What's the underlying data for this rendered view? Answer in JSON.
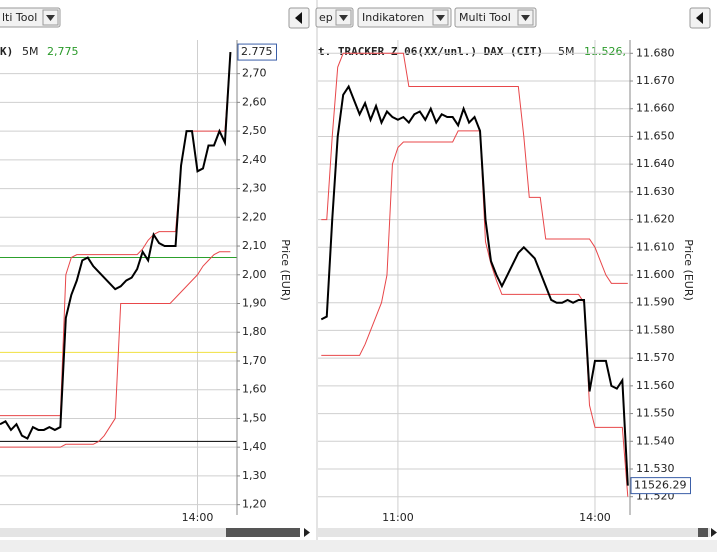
{
  "toolbars": [
    {
      "items": [
        "lti Tool"
      ]
    },
    {
      "items": [
        "ep",
        "Indikatoren",
        "Multi Tool"
      ]
    }
  ],
  "chart_data": [
    {
      "type": "line",
      "header": {
        "name": "K)",
        "interval": "5M",
        "last": "2,775"
      },
      "price_box": "2.775",
      "y_label": "Price (EUR)",
      "grid": true,
      "x": [
        660,
        665,
        670,
        675,
        680,
        685,
        690,
        695,
        700,
        705,
        710,
        715,
        720,
        725,
        730,
        735,
        740,
        745,
        750,
        755,
        760,
        765,
        770,
        775,
        780,
        785,
        790,
        795,
        800,
        805,
        810,
        815,
        820,
        825,
        830,
        835,
        840,
        845,
        850,
        855,
        860,
        865,
        870
      ],
      "xlim": [
        660,
        876
      ],
      "xticks": [
        {
          "value": 840,
          "label": "14:00"
        }
      ],
      "ylim": [
        1.164,
        2.817
      ],
      "yticks": [
        {
          "value": 1.2,
          "label": "1,20"
        },
        {
          "value": 1.3,
          "label": "1,30"
        },
        {
          "value": 1.4,
          "label": "1,40"
        },
        {
          "value": 1.5,
          "label": "1,50"
        },
        {
          "value": 1.6,
          "label": "1,60"
        },
        {
          "value": 1.7,
          "label": "1,70"
        },
        {
          "value": 1.8,
          "label": "1,80"
        },
        {
          "value": 1.9,
          "label": "1,90"
        },
        {
          "value": 2.0,
          "label": "2,00"
        },
        {
          "value": 2.1,
          "label": "2,10"
        },
        {
          "value": 2.2,
          "label": "2,20"
        },
        {
          "value": 2.3,
          "label": "2,30"
        },
        {
          "value": 2.4,
          "label": "2,40"
        },
        {
          "value": 2.5,
          "label": "2,50"
        },
        {
          "value": 2.6,
          "label": "2,60"
        },
        {
          "value": 2.7,
          "label": "2,70"
        }
      ],
      "hlines": [
        {
          "value": 2.06,
          "color": "#2ca02c"
        },
        {
          "value": 1.73,
          "color": "#f0e040"
        },
        {
          "value": 1.42,
          "color": "#000000"
        }
      ],
      "series": [
        {
          "color": "#e8474a",
          "values": [
            1.51,
            1.51,
            1.51,
            1.51,
            1.51,
            1.51,
            1.51,
            1.51,
            1.51,
            1.51,
            1.51,
            1.51,
            2.0,
            2.06,
            2.07,
            2.07,
            2.07,
            2.07,
            2.07,
            2.07,
            2.07,
            2.07,
            2.07,
            2.07,
            2.07,
            2.07,
            2.09,
            2.12,
            2.14,
            2.15,
            2.15,
            2.15,
            2.15,
            2.38,
            2.5,
            2.5,
            2.5,
            2.5,
            2.5,
            2.5,
            2.5,
            2.5,
            2.775
          ]
        },
        {
          "color": "#e8474a",
          "values": [
            1.4,
            1.4,
            1.4,
            1.4,
            1.4,
            1.4,
            1.4,
            1.4,
            1.4,
            1.4,
            1.4,
            1.4,
            1.41,
            1.41,
            1.41,
            1.41,
            1.41,
            1.41,
            1.42,
            1.44,
            1.47,
            1.5,
            1.9,
            1.9,
            1.9,
            1.9,
            1.9,
            1.9,
            1.9,
            1.9,
            1.9,
            1.9,
            1.92,
            1.94,
            1.96,
            1.98,
            2.0,
            2.03,
            2.05,
            2.07,
            2.08,
            2.08,
            2.08
          ]
        },
        {
          "color": "#000000",
          "values": [
            1.48,
            1.49,
            1.46,
            1.48,
            1.44,
            1.43,
            1.47,
            1.46,
            1.46,
            1.47,
            1.46,
            1.47,
            1.85,
            1.93,
            1.98,
            2.05,
            2.06,
            2.03,
            2.01,
            1.99,
            1.97,
            1.95,
            1.96,
            1.98,
            1.99,
            2.02,
            2.08,
            2.05,
            2.14,
            2.11,
            2.1,
            2.1,
            2.1,
            2.38,
            2.5,
            2.5,
            2.36,
            2.37,
            2.45,
            2.45,
            2.5,
            2.46,
            2.775
          ]
        }
      ]
    },
    {
      "type": "line",
      "header": {
        "name": "t. TRACKER Z 06(XX/unl.) DAX (CIT)",
        "interval": "5M",
        "last": "11.526,"
      },
      "price_box": "11526.29",
      "y_label": "Price (EUR)",
      "grid": true,
      "x": [
        590,
        595,
        600,
        605,
        610,
        615,
        620,
        625,
        630,
        635,
        640,
        645,
        650,
        655,
        660,
        665,
        670,
        675,
        680,
        685,
        690,
        695,
        700,
        705,
        710,
        715,
        720,
        725,
        730,
        735,
        740,
        745,
        750,
        755,
        760,
        765,
        770,
        775,
        780,
        785,
        790,
        795,
        800,
        805,
        810,
        815,
        820,
        825,
        830,
        835,
        840,
        845,
        850,
        855,
        860,
        865,
        870
      ],
      "xlim": [
        587,
        872
      ],
      "xticks": [
        {
          "value": 660,
          "label": "11:00"
        },
        {
          "value": 840,
          "label": "14:00"
        }
      ],
      "ylim": [
        11.5134,
        11.6848
      ],
      "yticks": [
        {
          "value": 11.52,
          "label": "11.520"
        },
        {
          "value": 11.53,
          "label": "11.530"
        },
        {
          "value": 11.54,
          "label": "11.540"
        },
        {
          "value": 11.55,
          "label": "11.550"
        },
        {
          "value": 11.56,
          "label": "11.560"
        },
        {
          "value": 11.57,
          "label": "11.570"
        },
        {
          "value": 11.58,
          "label": "11.580"
        },
        {
          "value": 11.59,
          "label": "11.590"
        },
        {
          "value": 11.6,
          "label": "11.600"
        },
        {
          "value": 11.61,
          "label": "11.610"
        },
        {
          "value": 11.62,
          "label": "11.620"
        },
        {
          "value": 11.63,
          "label": "11.630"
        },
        {
          "value": 11.64,
          "label": "11.640"
        },
        {
          "value": 11.65,
          "label": "11.650"
        },
        {
          "value": 11.66,
          "label": "11.660"
        },
        {
          "value": 11.67,
          "label": "11.670"
        },
        {
          "value": 11.68,
          "label": "11.680"
        }
      ],
      "series": [
        {
          "color": "#e8474a",
          "values": [
            11.62,
            11.62,
            11.65,
            11.675,
            11.68,
            11.68,
            11.68,
            11.68,
            11.68,
            11.68,
            11.68,
            11.68,
            11.68,
            11.68,
            11.68,
            11.68,
            11.668,
            11.668,
            11.668,
            11.668,
            11.668,
            11.668,
            11.668,
            11.668,
            11.668,
            11.668,
            11.668,
            11.668,
            11.668,
            11.668,
            11.668,
            11.668,
            11.668,
            11.668,
            11.668,
            11.668,
            11.668,
            11.65,
            11.628,
            11.628,
            11.628,
            11.613,
            11.613,
            11.613,
            11.613,
            11.613,
            11.613,
            11.613,
            11.613,
            11.613,
            11.61,
            11.605,
            11.6,
            11.597,
            11.597,
            11.597,
            11.597
          ]
        },
        {
          "color": "#e8474a",
          "values": [
            11.571,
            11.571,
            11.571,
            11.571,
            11.571,
            11.571,
            11.571,
            11.571,
            11.575,
            11.58,
            11.585,
            11.59,
            11.6,
            11.64,
            11.646,
            11.648,
            11.648,
            11.648,
            11.648,
            11.648,
            11.648,
            11.648,
            11.648,
            11.648,
            11.648,
            11.652,
            11.652,
            11.652,
            11.652,
            11.652,
            11.612,
            11.604,
            11.598,
            11.593,
            11.593,
            11.593,
            11.593,
            11.593,
            11.593,
            11.593,
            11.593,
            11.593,
            11.593,
            11.593,
            11.593,
            11.593,
            11.593,
            11.593,
            11.59,
            11.553,
            11.545,
            11.545,
            11.545,
            11.545,
            11.545,
            11.545,
            11.52
          ]
        },
        {
          "color": "#000000",
          "values": [
            11.584,
            11.585,
            11.62,
            11.65,
            11.665,
            11.668,
            11.663,
            11.658,
            11.662,
            11.656,
            11.661,
            11.655,
            11.659,
            11.657,
            11.656,
            11.657,
            11.655,
            11.658,
            11.659,
            11.656,
            11.66,
            11.655,
            11.658,
            11.657,
            11.657,
            11.654,
            11.66,
            11.655,
            11.657,
            11.652,
            11.62,
            11.605,
            11.6,
            11.596,
            11.6,
            11.604,
            11.608,
            11.61,
            11.608,
            11.606,
            11.601,
            11.596,
            11.591,
            11.59,
            11.59,
            11.591,
            11.59,
            11.591,
            11.591,
            11.558,
            11.569,
            11.569,
            11.569,
            11.56,
            11.559,
            11.562,
            11.524
          ]
        }
      ]
    }
  ]
}
